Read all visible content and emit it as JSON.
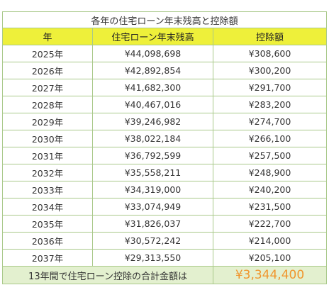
{
  "table": {
    "caption": "各年の住宅ローン年末残高と控除額",
    "headers": [
      "年",
      "住宅ローン年末残高",
      "控除額"
    ],
    "rows": [
      {
        "year": "2025年",
        "balance": "¥44,098,698",
        "deduction": "¥308,600"
      },
      {
        "year": "2026年",
        "balance": "¥42,892,854",
        "deduction": "¥300,200"
      },
      {
        "year": "2027年",
        "balance": "¥41,682,300",
        "deduction": "¥291,700"
      },
      {
        "year": "2028年",
        "balance": "¥40,467,016",
        "deduction": "¥283,200"
      },
      {
        "year": "2029年",
        "balance": "¥39,246,982",
        "deduction": "¥274,700"
      },
      {
        "year": "2030年",
        "balance": "¥38,022,184",
        "deduction": "¥266,100"
      },
      {
        "year": "2031年",
        "balance": "¥36,792,599",
        "deduction": "¥257,500"
      },
      {
        "year": "2032年",
        "balance": "¥35,558,211",
        "deduction": "¥248,900"
      },
      {
        "year": "2033年",
        "balance": "¥34,319,000",
        "deduction": "¥240,200"
      },
      {
        "year": "2034年",
        "balance": "¥33,074,949",
        "deduction": "¥231,500"
      },
      {
        "year": "2035年",
        "balance": "¥31,826,037",
        "deduction": "¥222,700"
      },
      {
        "year": "2036年",
        "balance": "¥30,572,242",
        "deduction": "¥214,000"
      },
      {
        "year": "2037年",
        "balance": "¥29,313,550",
        "deduction": "¥205,100"
      }
    ],
    "total_label": "13年間で住宅ローン控除の合計金額は",
    "total_value": "¥3,344,400"
  },
  "colors": {
    "header_bg": "#eef03a",
    "total_bg": "#e3f0cf",
    "total_text": "#f0962e",
    "border": "#a9c98a"
  }
}
